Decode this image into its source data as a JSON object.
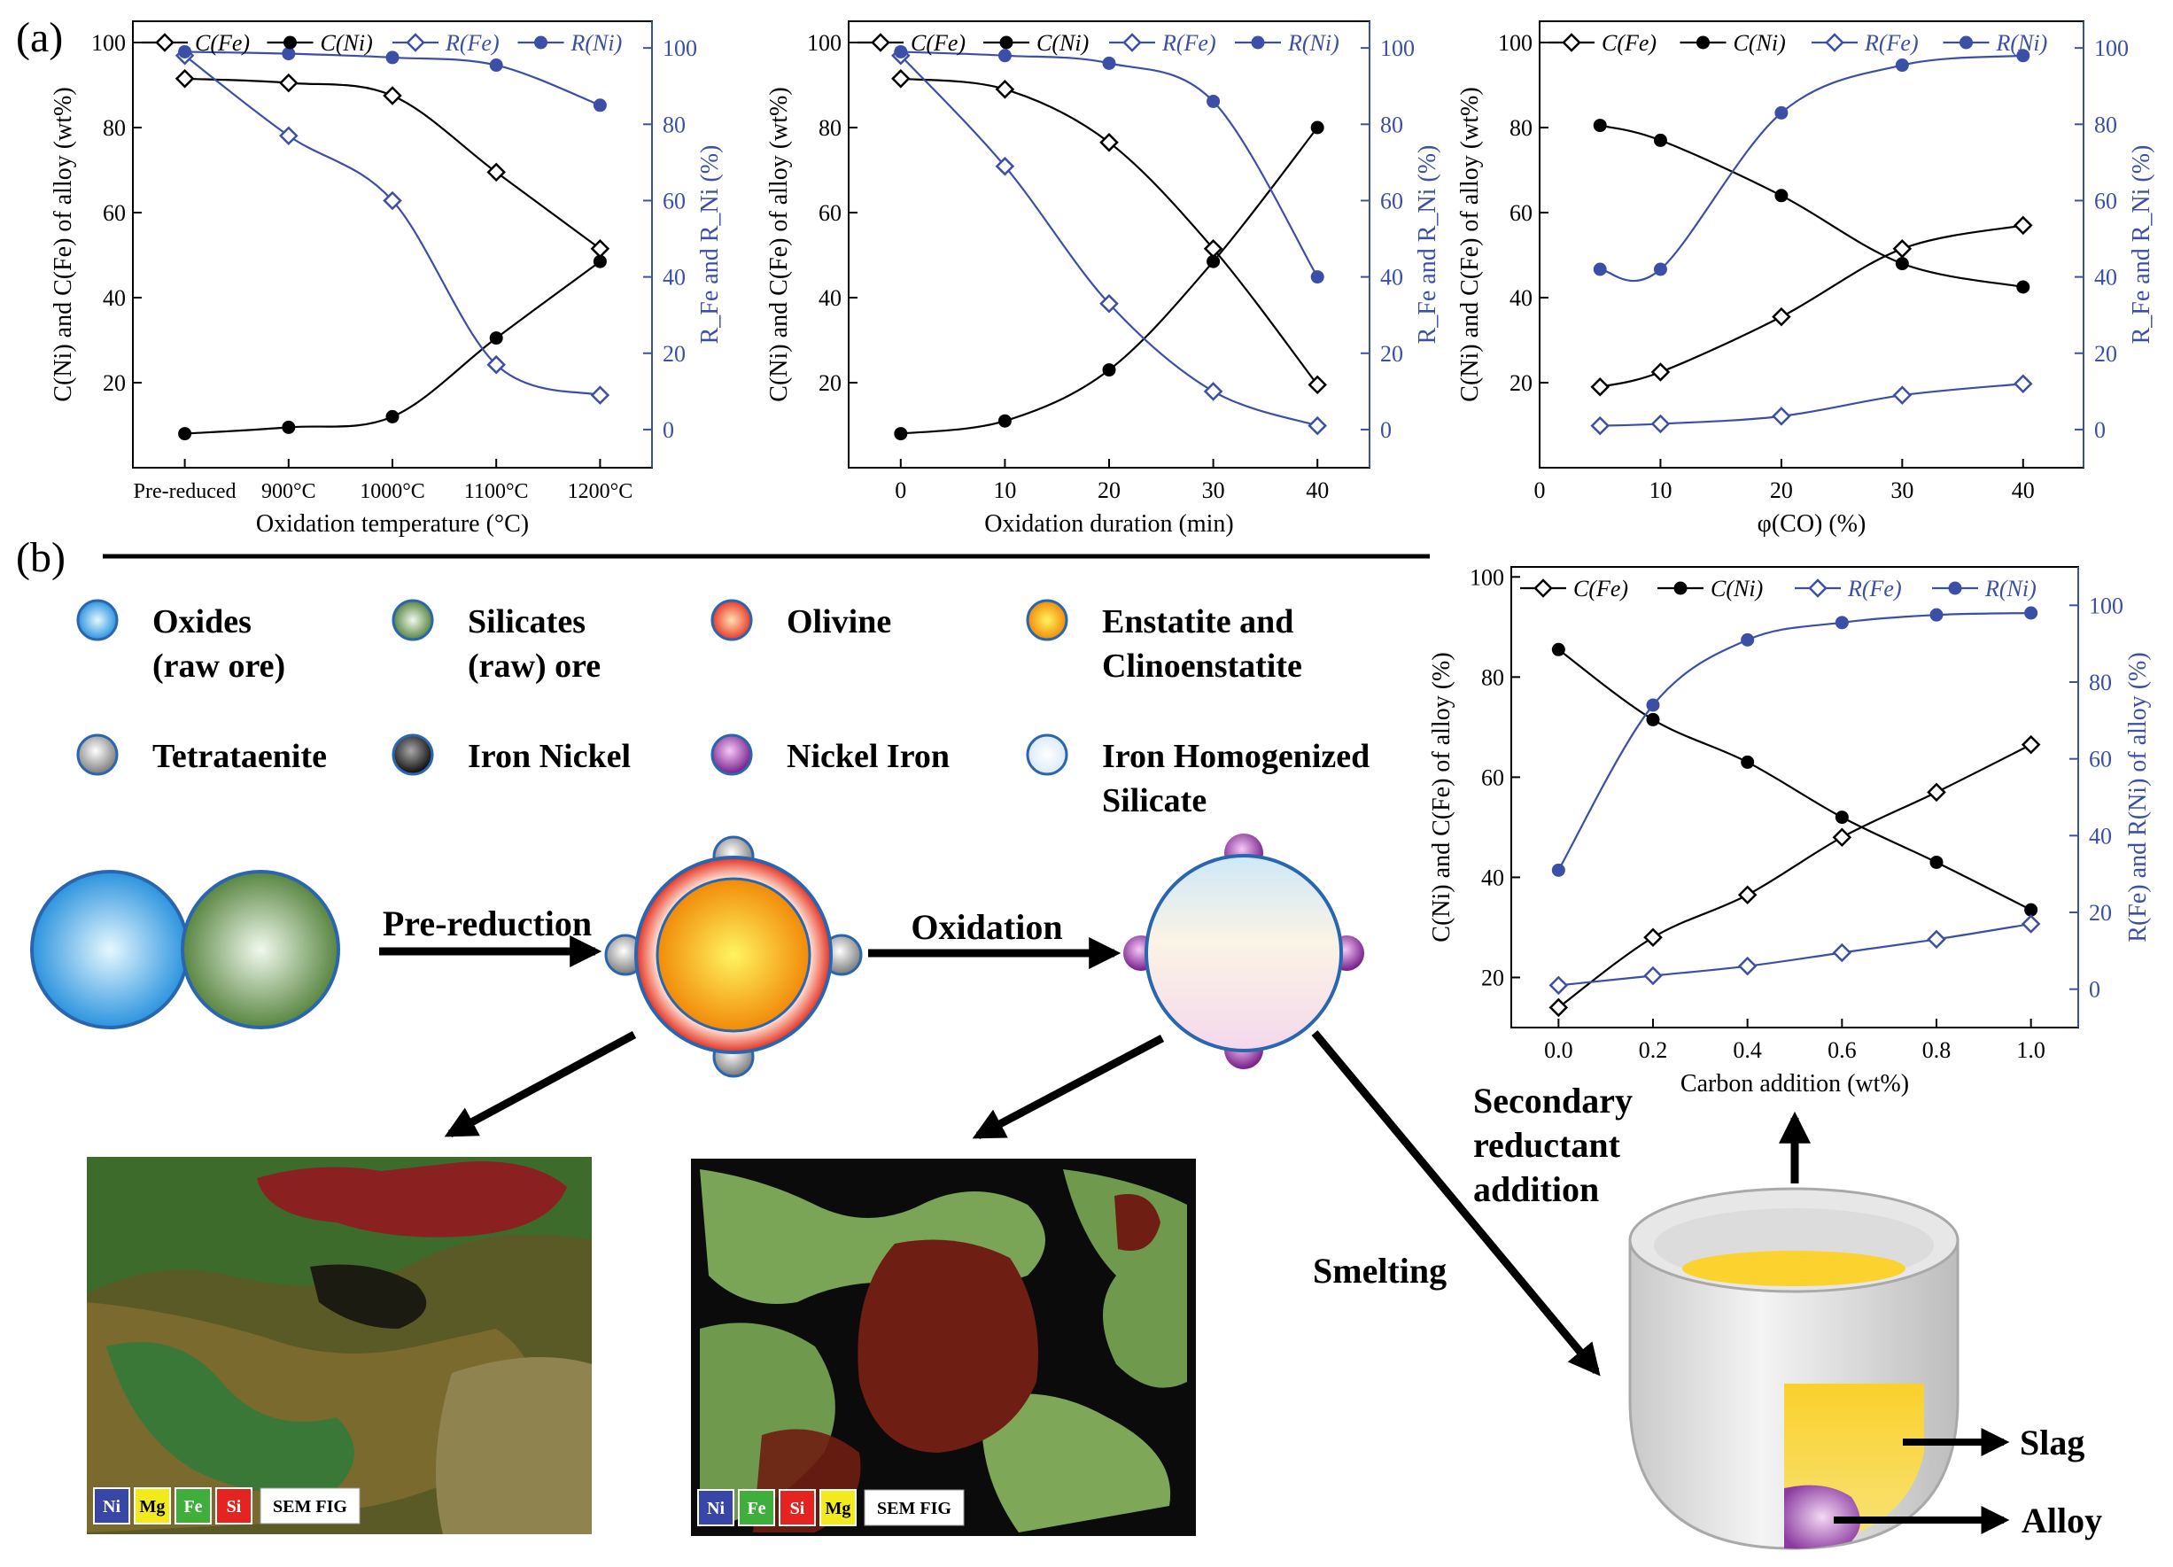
{
  "panel_labels": {
    "a": "(a)",
    "b": "(b)"
  },
  "chart_data": [
    {
      "type": "line",
      "categories": [
        "Pre-reduced",
        "900°C",
        "1000°C",
        "1100°C",
        "1200°C"
      ],
      "xlabel": "Oxidation temperature (°C)",
      "ylabel": "C(Ni) and C(Fe) of alloy (wt%)",
      "y2label": "R_Fe and R_Ni (%)",
      "ylim": [
        0,
        105
      ],
      "yticks": [
        20,
        40,
        60,
        80,
        100
      ],
      "y2lim": [
        -10,
        107
      ],
      "y2ticks": [
        0,
        20,
        40,
        60,
        80,
        100
      ],
      "legend": [
        "C(Fe)",
        "C(Ni)",
        "R(Fe)",
        "R(Ni)"
      ],
      "series": [
        {
          "name": "C(Fe)",
          "axis": "left",
          "marker": "open-diamond",
          "color": "#000000",
          "values": [
            91.5,
            90.5,
            87.5,
            69.5,
            51.5
          ]
        },
        {
          "name": "C(Ni)",
          "axis": "left",
          "marker": "filled-circle",
          "color": "#000000",
          "values": [
            8,
            9.5,
            12,
            30.5,
            48.5
          ]
        },
        {
          "name": "R(Fe)",
          "axis": "right",
          "marker": "open-diamond",
          "color": "#3b4fa6",
          "values": [
            98,
            77,
            60,
            17,
            9
          ]
        },
        {
          "name": "R(Ni)",
          "axis": "right",
          "marker": "filled-circle",
          "color": "#3b4fa6",
          "values": [
            99,
            98.5,
            97.5,
            95.5,
            85
          ]
        }
      ]
    },
    {
      "type": "line",
      "x": [
        0,
        10,
        20,
        30,
        40
      ],
      "xlabel": "Oxidation duration (min)",
      "ylabel": "C(Ni) and C(Fe) of alloy (wt%)",
      "y2label": "R_Fe and R_Ni (%)",
      "xlim": [
        -5,
        45
      ],
      "xticks": [
        0,
        10,
        20,
        30,
        40
      ],
      "ylim": [
        0,
        105
      ],
      "yticks": [
        20,
        40,
        60,
        80,
        100
      ],
      "y2lim": [
        -10,
        107
      ],
      "y2ticks": [
        0,
        20,
        40,
        60,
        80,
        100
      ],
      "legend": [
        "C(Fe)",
        "C(Ni)",
        "R(Fe)",
        "R(Ni)"
      ],
      "series": [
        {
          "name": "C(Fe)",
          "axis": "left",
          "marker": "open-diamond",
          "color": "#000000",
          "values": [
            91.5,
            89,
            76.5,
            51.5,
            19.5
          ]
        },
        {
          "name": "C(Ni)",
          "axis": "left",
          "marker": "filled-circle",
          "color": "#000000",
          "values": [
            8,
            11,
            23,
            48.5,
            80
          ]
        },
        {
          "name": "R(Fe)",
          "axis": "right",
          "marker": "open-diamond",
          "color": "#3b4fa6",
          "values": [
            98,
            69,
            33,
            10,
            1
          ]
        },
        {
          "name": "R(Ni)",
          "axis": "right",
          "marker": "filled-circle",
          "color": "#3b4fa6",
          "values": [
            99,
            98,
            96,
            86,
            40
          ]
        }
      ]
    },
    {
      "type": "line",
      "x": [
        5,
        10,
        20,
        30,
        40
      ],
      "xlabel": "φ(CO) (%)",
      "ylabel": "C(Ni) and C(Fe) of alloy (wt%)",
      "y2label": "R_Fe and R_Ni (%)",
      "xlim": [
        0,
        45
      ],
      "xticks": [
        0,
        10,
        20,
        30,
        40
      ],
      "ylim": [
        0,
        105
      ],
      "yticks": [
        20,
        40,
        60,
        80,
        100
      ],
      "y2lim": [
        -10,
        107
      ],
      "y2ticks": [
        0,
        20,
        40,
        60,
        80,
        100
      ],
      "legend": [
        "C(Fe)",
        "C(Ni)",
        "R(Fe)",
        "R(Ni)"
      ],
      "series": [
        {
          "name": "C(Fe)",
          "axis": "left",
          "marker": "open-diamond",
          "color": "#000000",
          "values": [
            19,
            22.5,
            35.5,
            51.5,
            57
          ]
        },
        {
          "name": "C(Ni)",
          "axis": "left",
          "marker": "filled-circle",
          "color": "#000000",
          "values": [
            80.5,
            77,
            64,
            48,
            42.5
          ]
        },
        {
          "name": "R(Fe)",
          "axis": "right",
          "marker": "open-diamond",
          "color": "#3b4fa6",
          "values": [
            1,
            1.5,
            3.5,
            9,
            12
          ]
        },
        {
          "name": "R(Ni)",
          "axis": "right",
          "marker": "filled-circle",
          "color": "#3b4fa6",
          "values": [
            42,
            42,
            83,
            95.5,
            98
          ]
        }
      ]
    },
    {
      "type": "line",
      "x": [
        0.0,
        0.2,
        0.4,
        0.6,
        0.8,
        1.0
      ],
      "xlabel": "Carbon addition (wt%)",
      "ylabel": "C(Ni) and C(Fe) of alloy (%)",
      "y2label": "R(Fe) and R(Ni) of alloy (%)",
      "xlim": [
        -0.1,
        1.1
      ],
      "xticks": [
        "0.0",
        "0.2",
        "0.4",
        "0.6",
        "0.8",
        "1.0"
      ],
      "ylim": [
        10,
        102
      ],
      "yticks": [
        20,
        40,
        60,
        80,
        100
      ],
      "y2lim": [
        -10,
        110
      ],
      "y2ticks": [
        0,
        20,
        40,
        60,
        80,
        100
      ],
      "legend": [
        "C(Fe)",
        "C(Ni)",
        "R(Fe)",
        "R(Ni)"
      ],
      "series": [
        {
          "name": "C(Fe)",
          "axis": "left",
          "marker": "open-diamond",
          "color": "#000000",
          "values": [
            14,
            28,
            36.5,
            48,
            57,
            66.5
          ]
        },
        {
          "name": "C(Ni)",
          "axis": "left",
          "marker": "filled-circle",
          "color": "#000000",
          "values": [
            85.5,
            71.5,
            63,
            52,
            43,
            33.5
          ]
        },
        {
          "name": "R(Fe)",
          "axis": "right",
          "marker": "open-diamond",
          "color": "#3b4fa6",
          "values": [
            1,
            3.5,
            6,
            9.5,
            13,
            17
          ]
        },
        {
          "name": "R(Ni)",
          "axis": "right",
          "marker": "filled-circle",
          "color": "#3b4fa6",
          "values": [
            31,
            74,
            91,
            95.5,
            97.5,
            98
          ]
        }
      ]
    }
  ],
  "legend_b": [
    {
      "label1": "Oxides",
      "label2": "(raw ore)",
      "icon": "oxides-ball-icon",
      "inner": "#e0f6ff",
      "outer": "#1b8fdc"
    },
    {
      "label1": "Silicates",
      "label2": "(raw) ore",
      "icon": "silicates-ball-icon",
      "inner": "#eef7ea",
      "outer": "#4e7d34"
    },
    {
      "label1": "Olivine",
      "label2": "",
      "icon": "olivine-ball-icon",
      "inner": "#ffd39a",
      "outer": "#e52b1f"
    },
    {
      "label1": "Enstatite and",
      "label2": "Clinoenstatite",
      "icon": "enstatite-ball-icon",
      "inner": "#fff36b",
      "outer": "#f08a00"
    },
    {
      "label1": "Tetrataenite",
      "label2": "",
      "icon": "tetrataenite-ball-icon",
      "inner": "#ffffff",
      "outer": "#7b7b7b"
    },
    {
      "label1": "Iron Nickel",
      "label2": "",
      "icon": "iron-nickel-ball-icon",
      "inner": "#9a9a9a",
      "outer": "#0b0b0b"
    },
    {
      "label1": "Nickel Iron",
      "label2": "",
      "icon": "nickel-iron-ball-icon",
      "inner": "#f0c0f0",
      "outer": "#7a1e8c"
    },
    {
      "label1": "Iron Homogenized",
      "label2": "Silicate",
      "icon": "homogenized-silicate-ball-icon",
      "inner": "#ffffff",
      "outer": "#cfe3f2"
    }
  ],
  "process": {
    "pre_reduction": "Pre-reduction",
    "oxidation": "Oxidation",
    "smelting": "Smelting",
    "secondary": [
      "Secondary",
      "reductant",
      "addition"
    ],
    "slag": "Slag",
    "alloy": "Alloy"
  },
  "sem_left": {
    "legend": [
      {
        "label": "Ni",
        "color": "#3846a8"
      },
      {
        "label": "Mg",
        "color": "#f2ea1a"
      },
      {
        "label": "Fe",
        "color": "#3fae3b"
      },
      {
        "label": "Si",
        "color": "#e52421"
      }
    ],
    "tag": "SEM FIG"
  },
  "sem_right": {
    "legend": [
      {
        "label": "Ni",
        "color": "#3846a8"
      },
      {
        "label": "Fe",
        "color": "#3fae3b"
      },
      {
        "label": "Si",
        "color": "#e52421"
      },
      {
        "label": "Mg",
        "color": "#f2ea1a"
      }
    ],
    "tag": "SEM FIG"
  }
}
